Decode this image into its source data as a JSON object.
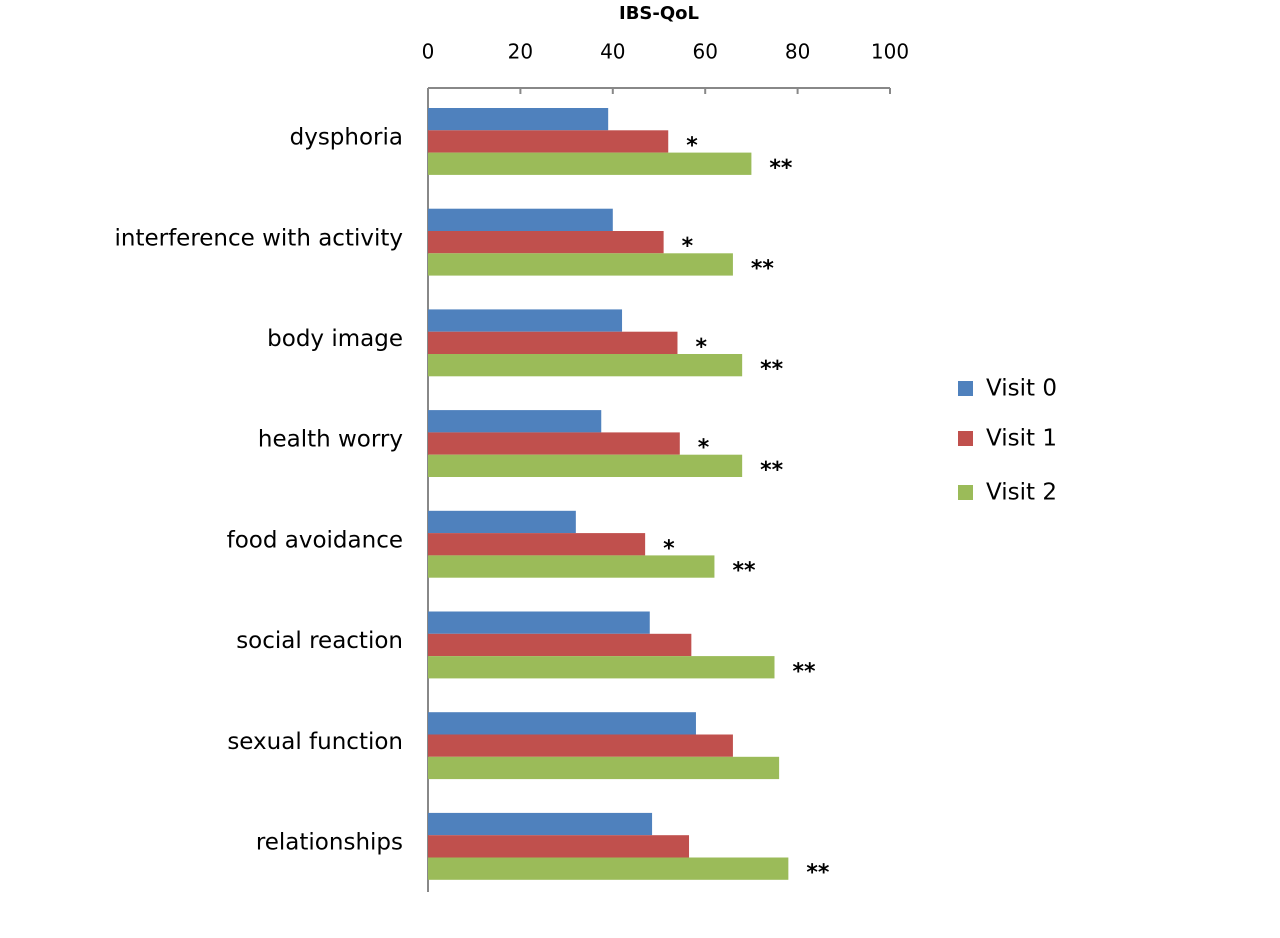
{
  "chart_data": {
    "type": "bar",
    "orientation": "horizontal",
    "title": "IBS-QoL",
    "categories": [
      "dysphoria",
      "interference with activity",
      "body image",
      "health worry",
      "food avoidance",
      "social reaction",
      "sexual function",
      "relationships"
    ],
    "series": [
      {
        "name": "Visit 0",
        "color": "#4f81bd",
        "values": [
          39,
          40,
          42,
          37.5,
          32,
          48,
          58,
          48.5
        ],
        "significance": [
          null,
          null,
          null,
          null,
          null,
          null,
          null,
          null
        ]
      },
      {
        "name": "Visit 1",
        "color": "#c0504d",
        "values": [
          52,
          51,
          54,
          54.5,
          47,
          57,
          66,
          56.5
        ],
        "significance": [
          "*",
          "*",
          "*",
          "*",
          "*",
          null,
          null,
          null
        ]
      },
      {
        "name": "Visit 2",
        "color": "#9bbb59",
        "values": [
          70,
          66,
          68,
          68,
          62,
          75,
          76,
          78
        ],
        "significance": [
          "**",
          "**",
          "**",
          "**",
          "**",
          "**",
          null,
          "**"
        ]
      }
    ],
    "xlim": [
      0,
      100
    ],
    "xticks": [
      0,
      20,
      40,
      60,
      80,
      100
    ],
    "legend": "right"
  }
}
